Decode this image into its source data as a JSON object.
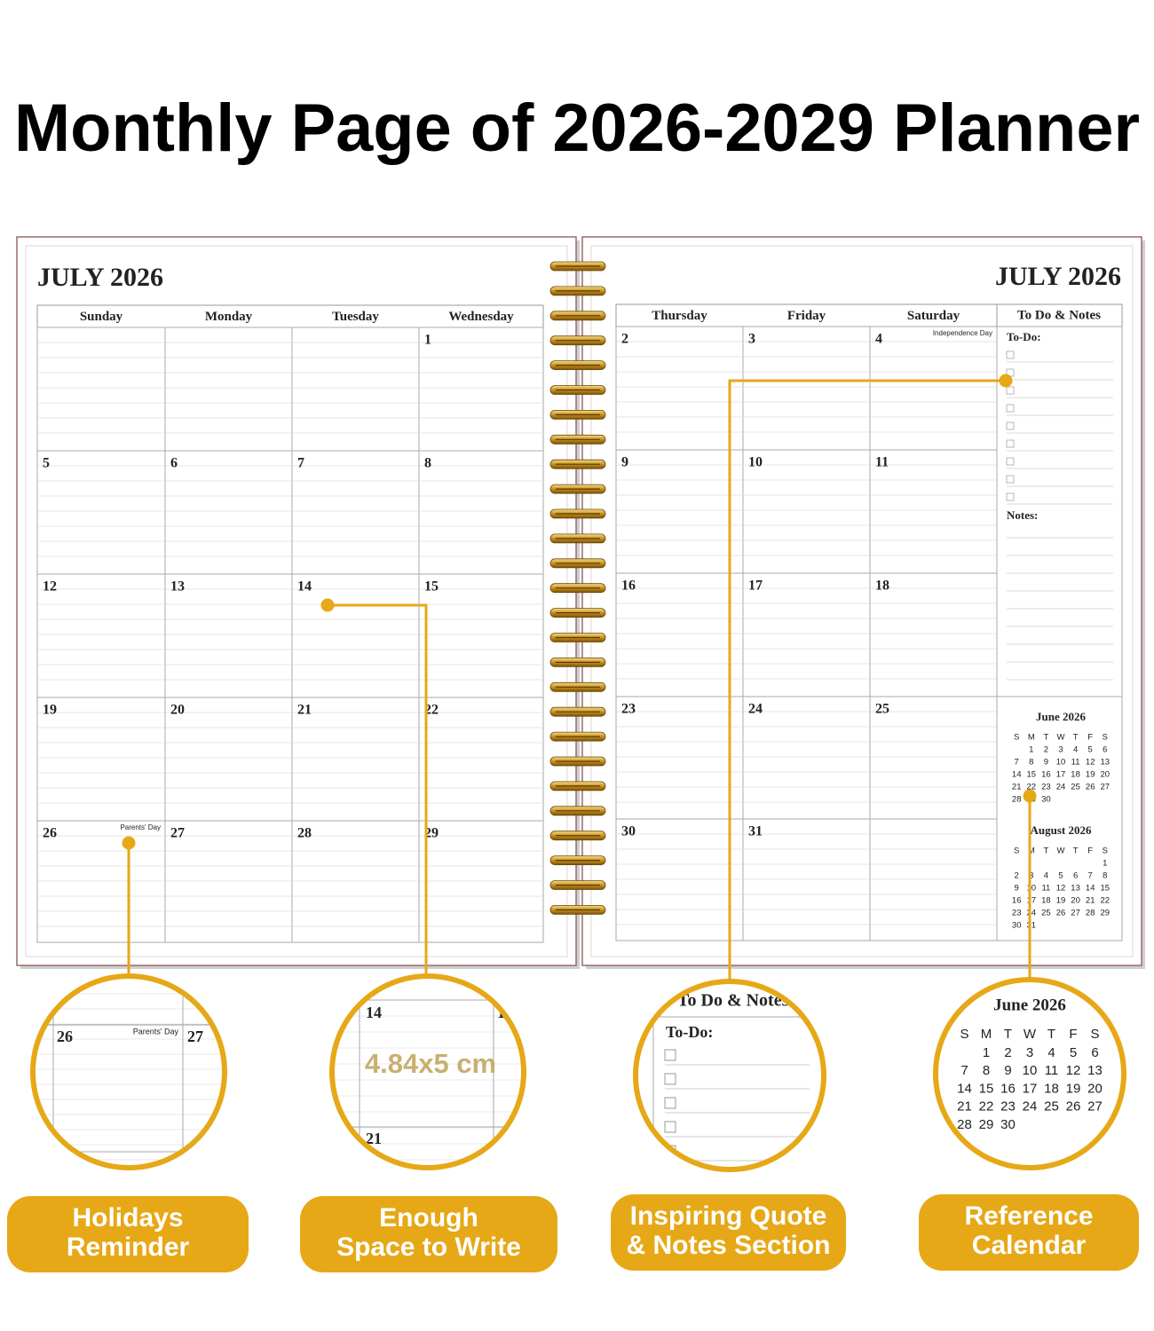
{
  "title": "Monthly Page of 2026-2029 Planner",
  "left_page": {
    "month": "JULY 2026",
    "weekdays": [
      "Sunday",
      "Monday",
      "Tuesday",
      "Wednesday"
    ],
    "weeks": [
      [
        null,
        null,
        null,
        1
      ],
      [
        5,
        6,
        7,
        8
      ],
      [
        12,
        13,
        14,
        15
      ],
      [
        19,
        20,
        21,
        22
      ],
      [
        {
          "day": 26,
          "holiday": "Parents' Day"
        },
        27,
        28,
        29
      ]
    ]
  },
  "right_page": {
    "month": "JULY 2026",
    "weekdays": [
      "Thursday",
      "Friday",
      "Saturday"
    ],
    "notes_header": "To Do & Notes",
    "weeks": [
      [
        2,
        3,
        {
          "day": 4,
          "holiday": "Independence Day"
        }
      ],
      [
        9,
        10,
        11
      ],
      [
        16,
        17,
        18
      ],
      [
        23,
        24,
        25
      ],
      [
        30,
        31,
        null
      ]
    ],
    "todo_label": "To-Do:",
    "notes_label": "Notes:",
    "mini_calendars": [
      {
        "title": "June 2026",
        "weekdays": [
          "S",
          "M",
          "T",
          "W",
          "T",
          "F",
          "S"
        ],
        "weeks": [
          [
            null,
            1,
            2,
            3,
            4,
            5,
            6
          ],
          [
            7,
            8,
            9,
            10,
            11,
            12,
            13
          ],
          [
            14,
            15,
            16,
            17,
            18,
            19,
            20
          ],
          [
            21,
            22,
            23,
            24,
            25,
            26,
            27
          ],
          [
            28,
            29,
            30,
            null,
            null,
            null,
            null
          ]
        ]
      },
      {
        "title": "August 2026",
        "weekdays": [
          "S",
          "M",
          "T",
          "W",
          "T",
          "F",
          "S"
        ],
        "weeks": [
          [
            null,
            null,
            null,
            null,
            null,
            null,
            1
          ],
          [
            2,
            3,
            4,
            5,
            6,
            7,
            8
          ],
          [
            9,
            10,
            11,
            12,
            13,
            14,
            15
          ],
          [
            16,
            17,
            18,
            19,
            20,
            21,
            22
          ],
          [
            23,
            24,
            25,
            26,
            27,
            28,
            29
          ],
          [
            30,
            31,
            null,
            null,
            null,
            null,
            null
          ]
        ]
      }
    ]
  },
  "callouts": [
    {
      "label": [
        "Holidays",
        "Reminder"
      ]
    },
    {
      "zoom_text": "4.84x5 cm",
      "label": [
        "Enough",
        "Space to Write"
      ]
    },
    {
      "label": [
        "Inspiring Quote",
        "& Notes Section"
      ]
    },
    {
      "label": [
        "Reference",
        "Calendar"
      ]
    }
  ]
}
